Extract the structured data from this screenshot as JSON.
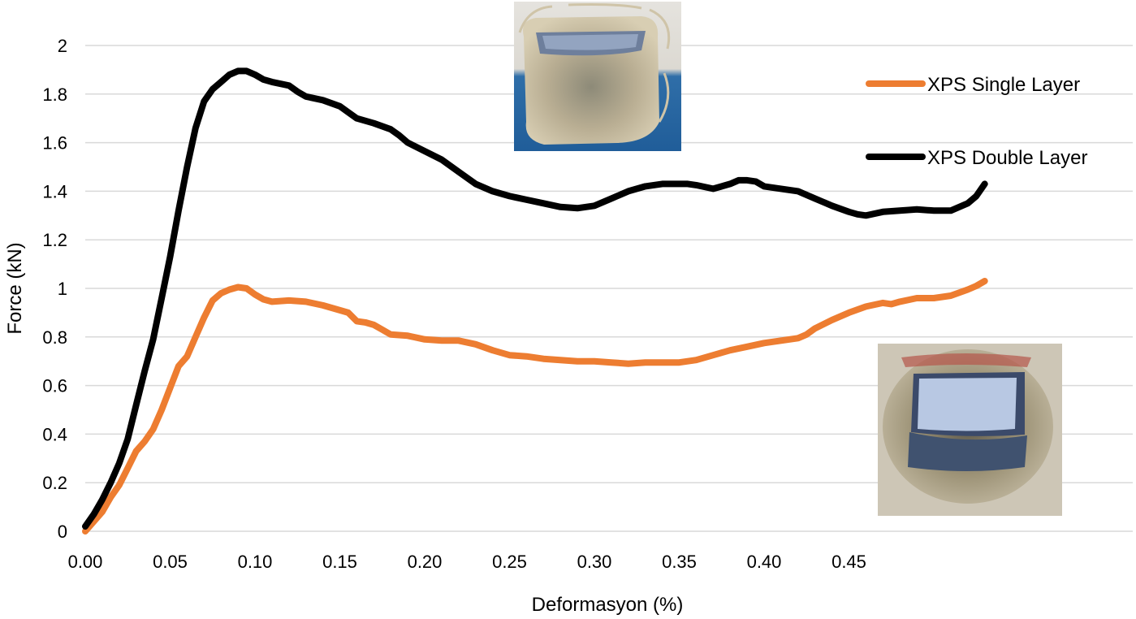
{
  "chart_data": {
    "type": "line",
    "xlabel": "Deformasyon (%)",
    "ylabel": "Force (kN)",
    "xlim": [
      0,
      0.58
    ],
    "ylim": [
      0,
      2
    ],
    "x_ticks": [
      "0.00",
      "0.05",
      "0.10",
      "0.15",
      "0.20",
      "0.25",
      "0.30",
      "0.35",
      "0.40",
      "0.45"
    ],
    "y_ticks": [
      "0",
      "0.2",
      "0.4",
      "0.6",
      "0.8",
      "1",
      "1.2",
      "1.4",
      "1.6",
      "1.8",
      "2"
    ],
    "grid": "horizontal",
    "legend_position": "top-right",
    "series": [
      {
        "name": "XPS Single Layer",
        "color": "#ED7D31",
        "points": [
          [
            0,
            0
          ],
          [
            0.005,
            0.04
          ],
          [
            0.01,
            0.08
          ],
          [
            0.015,
            0.14
          ],
          [
            0.02,
            0.19
          ],
          [
            0.025,
            0.26
          ],
          [
            0.03,
            0.33
          ],
          [
            0.035,
            0.37
          ],
          [
            0.04,
            0.42
          ],
          [
            0.045,
            0.5
          ],
          [
            0.05,
            0.59
          ],
          [
            0.055,
            0.68
          ],
          [
            0.06,
            0.72
          ],
          [
            0.065,
            0.8
          ],
          [
            0.07,
            0.88
          ],
          [
            0.075,
            0.95
          ],
          [
            0.08,
            0.98
          ],
          [
            0.085,
            0.995
          ],
          [
            0.09,
            1.005
          ],
          [
            0.095,
            1.0
          ],
          [
            0.1,
            0.975
          ],
          [
            0.105,
            0.955
          ],
          [
            0.11,
            0.945
          ],
          [
            0.12,
            0.95
          ],
          [
            0.13,
            0.945
          ],
          [
            0.14,
            0.93
          ],
          [
            0.15,
            0.91
          ],
          [
            0.155,
            0.9
          ],
          [
            0.16,
            0.865
          ],
          [
            0.165,
            0.86
          ],
          [
            0.17,
            0.85
          ],
          [
            0.175,
            0.83
          ],
          [
            0.18,
            0.81
          ],
          [
            0.19,
            0.805
          ],
          [
            0.2,
            0.79
          ],
          [
            0.21,
            0.785
          ],
          [
            0.22,
            0.785
          ],
          [
            0.23,
            0.77
          ],
          [
            0.24,
            0.745
          ],
          [
            0.25,
            0.725
          ],
          [
            0.26,
            0.72
          ],
          [
            0.27,
            0.71
          ],
          [
            0.28,
            0.705
          ],
          [
            0.29,
            0.7
          ],
          [
            0.3,
            0.7
          ],
          [
            0.31,
            0.695
          ],
          [
            0.32,
            0.69
          ],
          [
            0.33,
            0.695
          ],
          [
            0.34,
            0.695
          ],
          [
            0.35,
            0.695
          ],
          [
            0.36,
            0.705
          ],
          [
            0.37,
            0.725
          ],
          [
            0.38,
            0.745
          ],
          [
            0.39,
            0.76
          ],
          [
            0.4,
            0.775
          ],
          [
            0.41,
            0.785
          ],
          [
            0.42,
            0.795
          ],
          [
            0.425,
            0.81
          ],
          [
            0.43,
            0.835
          ],
          [
            0.44,
            0.87
          ],
          [
            0.45,
            0.9
          ],
          [
            0.46,
            0.925
          ],
          [
            0.47,
            0.94
          ],
          [
            0.475,
            0.935
          ],
          [
            0.48,
            0.945
          ],
          [
            0.49,
            0.96
          ],
          [
            0.5,
            0.96
          ],
          [
            0.51,
            0.97
          ],
          [
            0.52,
            0.995
          ],
          [
            0.525,
            1.01
          ],
          [
            0.53,
            1.03
          ]
        ]
      },
      {
        "name": "XPS Double Layer",
        "color": "#000000",
        "points": [
          [
            0,
            0.02
          ],
          [
            0.005,
            0.07
          ],
          [
            0.01,
            0.13
          ],
          [
            0.015,
            0.2
          ],
          [
            0.02,
            0.28
          ],
          [
            0.025,
            0.38
          ],
          [
            0.03,
            0.52
          ],
          [
            0.035,
            0.66
          ],
          [
            0.04,
            0.79
          ],
          [
            0.045,
            0.96
          ],
          [
            0.05,
            1.13
          ],
          [
            0.055,
            1.32
          ],
          [
            0.06,
            1.5
          ],
          [
            0.065,
            1.66
          ],
          [
            0.07,
            1.77
          ],
          [
            0.075,
            1.82
          ],
          [
            0.08,
            1.85
          ],
          [
            0.085,
            1.88
          ],
          [
            0.09,
            1.895
          ],
          [
            0.095,
            1.895
          ],
          [
            0.1,
            1.88
          ],
          [
            0.105,
            1.86
          ],
          [
            0.11,
            1.85
          ],
          [
            0.12,
            1.835
          ],
          [
            0.125,
            1.81
          ],
          [
            0.13,
            1.79
          ],
          [
            0.14,
            1.775
          ],
          [
            0.15,
            1.75
          ],
          [
            0.155,
            1.725
          ],
          [
            0.16,
            1.7
          ],
          [
            0.17,
            1.68
          ],
          [
            0.18,
            1.655
          ],
          [
            0.185,
            1.63
          ],
          [
            0.19,
            1.6
          ],
          [
            0.2,
            1.565
          ],
          [
            0.21,
            1.53
          ],
          [
            0.22,
            1.48
          ],
          [
            0.23,
            1.43
          ],
          [
            0.24,
            1.4
          ],
          [
            0.25,
            1.38
          ],
          [
            0.26,
            1.365
          ],
          [
            0.27,
            1.35
          ],
          [
            0.28,
            1.335
          ],
          [
            0.29,
            1.33
          ],
          [
            0.3,
            1.34
          ],
          [
            0.31,
            1.37
          ],
          [
            0.32,
            1.4
          ],
          [
            0.33,
            1.42
          ],
          [
            0.34,
            1.43
          ],
          [
            0.35,
            1.43
          ],
          [
            0.355,
            1.43
          ],
          [
            0.36,
            1.425
          ],
          [
            0.37,
            1.41
          ],
          [
            0.38,
            1.43
          ],
          [
            0.385,
            1.445
          ],
          [
            0.39,
            1.445
          ],
          [
            0.395,
            1.44
          ],
          [
            0.4,
            1.42
          ],
          [
            0.41,
            1.41
          ],
          [
            0.42,
            1.4
          ],
          [
            0.43,
            1.37
          ],
          [
            0.44,
            1.34
          ],
          [
            0.45,
            1.315
          ],
          [
            0.455,
            1.305
          ],
          [
            0.46,
            1.3
          ],
          [
            0.47,
            1.315
          ],
          [
            0.48,
            1.32
          ],
          [
            0.49,
            1.325
          ],
          [
            0.5,
            1.32
          ],
          [
            0.51,
            1.32
          ],
          [
            0.52,
            1.35
          ],
          [
            0.525,
            1.38
          ],
          [
            0.53,
            1.43
          ]
        ]
      }
    ]
  },
  "images": [
    {
      "name": "single-layer-photo",
      "description_icon": "sample-photo-icon"
    },
    {
      "name": "double-layer-photo",
      "description_icon": "sample-photo-icon"
    }
  ]
}
